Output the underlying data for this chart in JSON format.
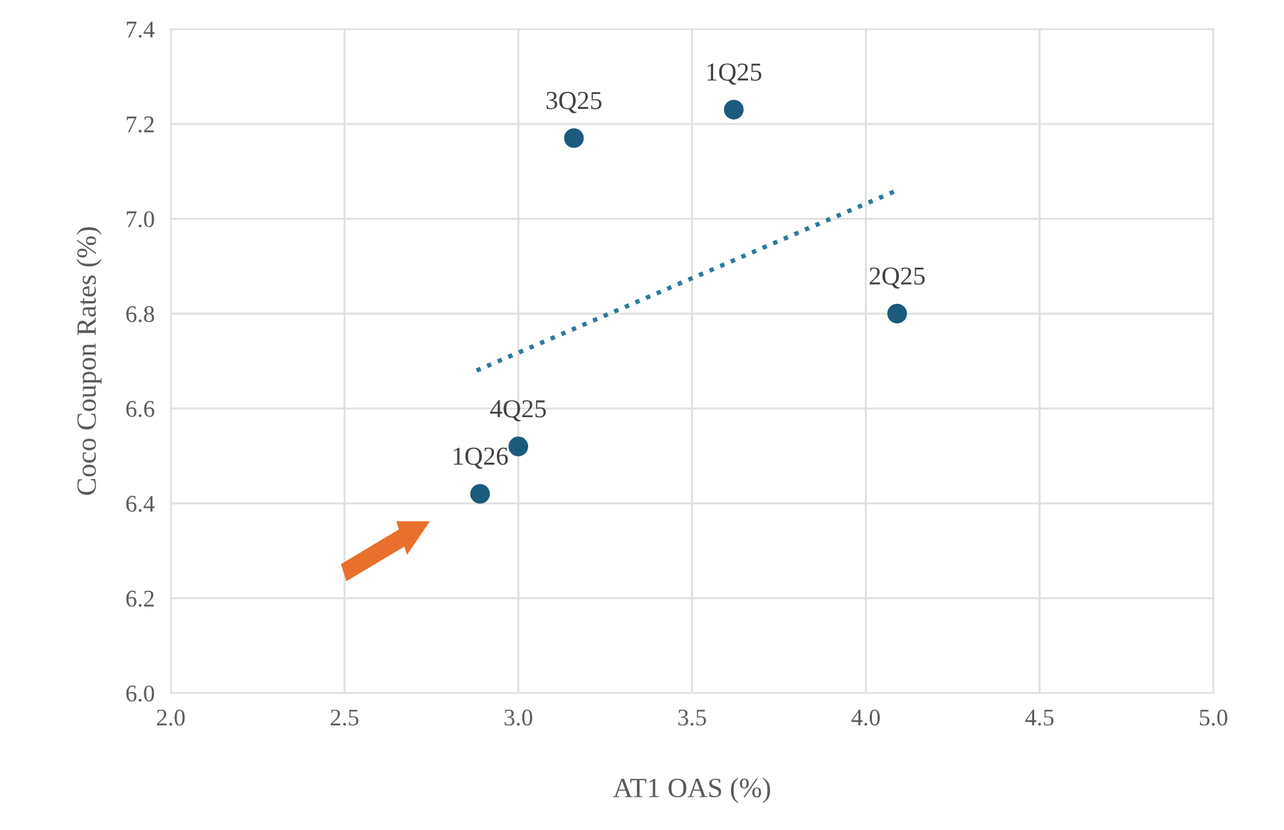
{
  "chart_data": {
    "type": "scatter",
    "xlabel": "AT1 OAS (%)",
    "ylabel": "Coco Coupon Rates (%)",
    "xlim": [
      2.0,
      5.0
    ],
    "ylim": [
      6.0,
      7.4
    ],
    "xticks": [
      {
        "value": 2,
        "label": "2.0"
      },
      2.5,
      {
        "value": 3,
        "label": "3.0"
      },
      3.5,
      {
        "value": 4,
        "label": "4.0"
      },
      4.5,
      {
        "value": 5,
        "label": "5.0"
      }
    ],
    "yticks": [
      {
        "value": 6,
        "label": "6.0"
      },
      6.2,
      6.4,
      6.6,
      6.8,
      {
        "value": 7,
        "label": "7.0"
      },
      7.2,
      7.4
    ],
    "grid": true,
    "marker": "circle",
    "series": [
      {
        "color": "#1b5b7c",
        "x": [
          3.62,
          4.09,
          3.16,
          3.0,
          2.89
        ],
        "values": [
          7.23,
          6.8,
          7.17,
          6.52,
          6.42
        ]
      },
      {
        "type": "line",
        "color": "#2a7a9c",
        "line_style": "dotted",
        "marker": "none",
        "x": [
          2.88,
          4.09
        ],
        "values": [
          6.68,
          7.06
        ]
      }
    ],
    "annotations": [
      {
        "text": "1Q25",
        "x": 3.62,
        "y": 7.23
      },
      {
        "text": "2Q25",
        "x": 4.09,
        "y": 6.8
      },
      {
        "text": "3Q25",
        "x": 3.16,
        "y": 7.17
      },
      {
        "text": "4Q25",
        "x": 3.0,
        "y": 6.52
      },
      {
        "text": "1Q26",
        "x": 2.89,
        "y": 6.42
      }
    ]
  }
}
